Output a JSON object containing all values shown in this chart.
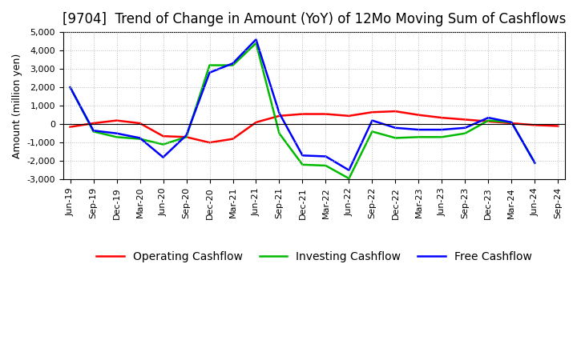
{
  "title": "[9704]  Trend of Change in Amount (YoY) of 12Mo Moving Sum of Cashflows",
  "ylabel": "Amount (million yen)",
  "xlabels": [
    "Jun-19",
    "Sep-19",
    "Dec-19",
    "Mar-20",
    "Jun-20",
    "Sep-20",
    "Dec-20",
    "Mar-21",
    "Jun-21",
    "Sep-21",
    "Dec-21",
    "Mar-22",
    "Jun-22",
    "Sep-22",
    "Dec-22",
    "Mar-23",
    "Jun-23",
    "Sep-23",
    "Dec-23",
    "Mar-24",
    "Jun-24",
    "Sep-24"
  ],
  "operating": [
    -150,
    50,
    200,
    50,
    -650,
    -700,
    -1000,
    -800,
    100,
    450,
    550,
    550,
    450,
    650,
    700,
    500,
    350,
    250,
    150,
    50,
    -50,
    -100
  ],
  "investing": [
    2000,
    -400,
    -700,
    -800,
    -1100,
    -700,
    3200,
    3200,
    4400,
    -500,
    -2200,
    -2250,
    -2950,
    -400,
    -750,
    -700,
    -700,
    -500,
    200,
    100,
    -2100,
    null
  ],
  "free": [
    2000,
    -350,
    -500,
    -750,
    -1800,
    -600,
    2800,
    3300,
    4600,
    600,
    -1700,
    -1750,
    -2500,
    200,
    -200,
    -300,
    -300,
    -200,
    350,
    100,
    -2100,
    null
  ],
  "ylim": [
    -3000,
    5000
  ],
  "yticks": [
    -3000,
    -2000,
    -1000,
    0,
    1000,
    2000,
    3000,
    4000,
    5000
  ],
  "operating_color": "#ff0000",
  "investing_color": "#00bb00",
  "free_color": "#0000ff",
  "background_color": "#ffffff",
  "grid_color": "#bbbbbb",
  "title_fontsize": 12,
  "axis_fontsize": 9,
  "tick_fontsize": 8,
  "legend_fontsize": 10
}
